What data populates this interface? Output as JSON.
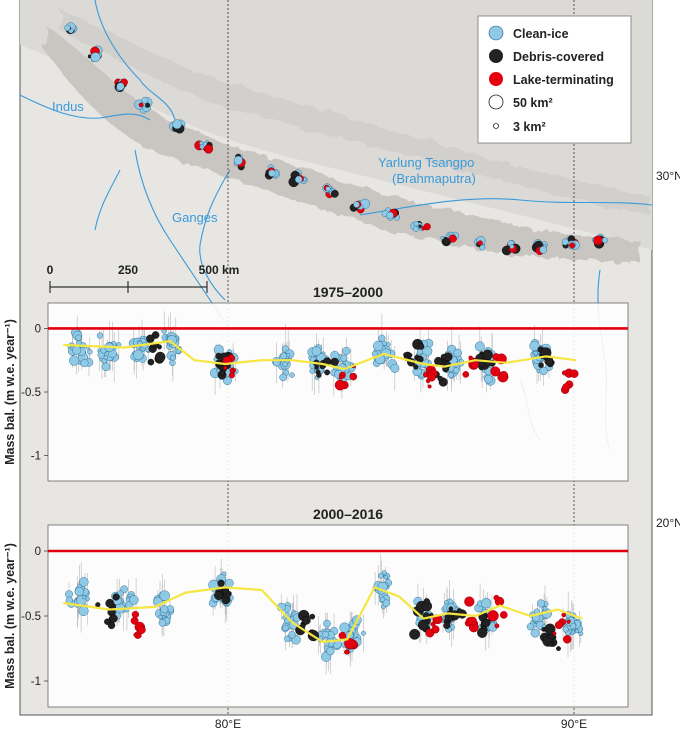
{
  "map": {
    "rivers": [
      "Indus",
      "Ganges",
      "Yarlung Tsangpo",
      "(Brahmaputra)"
    ],
    "scalebar": {
      "ticks": [
        "0",
        "250",
        "500 km"
      ]
    },
    "lat_labels": [
      "30°N",
      "20°N"
    ],
    "lon_labels": [
      "80°E",
      "90°E"
    ],
    "colors": {
      "clean_ice": "#8ecae6",
      "debris": "#222222",
      "lake": "#e3000f",
      "river": "#3a9ad9",
      "land": "#e4e2df",
      "mountain": "#c9c6c2",
      "zero_line": "#e3000f",
      "trend": "#f5e642"
    }
  },
  "legend": {
    "items": [
      "Clean-ice",
      "Debris-covered",
      "Lake-terminating"
    ],
    "size_items": [
      "50 km²",
      "3 km²"
    ]
  },
  "chart_data": [
    {
      "type": "scatter",
      "title": "1975–2000",
      "ylabel": "Mass bal. (m w.e. year⁻¹)",
      "xlim": [
        73.5,
        92.5
      ],
      "ylim": [
        -1.2,
        0.2
      ],
      "yticks": [
        "0",
        "-0.5",
        "-1"
      ],
      "xticks": [
        "80°E",
        "90°E"
      ],
      "reference_line_y": 0,
      "series": [
        {
          "category": "Clean-ice",
          "color": "#8ecae6",
          "clusters": [
            [
              74.5,
              -0.15
            ],
            [
              75.5,
              -0.2
            ],
            [
              76.5,
              -0.18
            ],
            [
              77.5,
              -0.12
            ],
            [
              79.3,
              -0.28
            ],
            [
              81.3,
              -0.25
            ],
            [
              82.3,
              -0.28
            ],
            [
              83.2,
              -0.3
            ],
            [
              84.5,
              -0.2
            ],
            [
              85.8,
              -0.26
            ],
            [
              86.8,
              -0.28
            ],
            [
              87.9,
              -0.27
            ],
            [
              89.6,
              -0.24
            ]
          ]
        },
        {
          "category": "Debris-covered",
          "color": "#222222",
          "clusters": [
            [
              77.0,
              -0.15
            ],
            [
              79.3,
              -0.3
            ],
            [
              82.5,
              -0.3
            ],
            [
              85.5,
              -0.25
            ],
            [
              86.5,
              -0.3
            ],
            [
              87.8,
              -0.3
            ],
            [
              89.8,
              -0.25
            ]
          ]
        },
        {
          "category": "Lake-terminating",
          "color": "#e3000f",
          "clusters": [
            [
              79.5,
              -0.25
            ],
            [
              83.2,
              -0.35
            ],
            [
              86.0,
              -0.4
            ],
            [
              87.3,
              -0.32
            ],
            [
              88.2,
              -0.3
            ],
            [
              90.5,
              -0.4
            ]
          ]
        }
      ],
      "trend": [
        [
          74.0,
          -0.13
        ],
        [
          76.0,
          -0.15
        ],
        [
          77.5,
          -0.1
        ],
        [
          78.3,
          -0.25
        ],
        [
          79.3,
          -0.28
        ],
        [
          80.5,
          -0.25
        ],
        [
          81.5,
          -0.25
        ],
        [
          82.5,
          -0.28
        ],
        [
          83.2,
          -0.32
        ],
        [
          84.5,
          -0.2
        ],
        [
          85.8,
          -0.28
        ],
        [
          86.5,
          -0.3
        ],
        [
          87.5,
          -0.25
        ],
        [
          88.5,
          -0.27
        ],
        [
          89.8,
          -0.22
        ],
        [
          90.8,
          -0.25
        ]
      ]
    },
    {
      "type": "scatter",
      "title": "2000–2016",
      "ylabel": "Mass bal. (m w.e. year⁻¹)",
      "xlim": [
        73.5,
        92.5
      ],
      "ylim": [
        -1.2,
        0.2
      ],
      "yticks": [
        "0",
        "-0.5",
        "-1"
      ],
      "xticks": [
        "80°E",
        "90°E"
      ],
      "reference_line_y": 0,
      "series": [
        {
          "category": "Clean-ice",
          "color": "#8ecae6",
          "clusters": [
            [
              74.5,
              -0.35
            ],
            [
              76.0,
              -0.4
            ],
            [
              77.3,
              -0.45
            ],
            [
              79.2,
              -0.3
            ],
            [
              81.4,
              -0.55
            ],
            [
              82.6,
              -0.7
            ],
            [
              83.5,
              -0.65
            ],
            [
              84.5,
              -0.3
            ],
            [
              85.8,
              -0.5
            ],
            [
              86.7,
              -0.5
            ],
            [
              87.9,
              -0.5
            ],
            [
              89.6,
              -0.5
            ],
            [
              90.7,
              -0.6
            ]
          ]
        },
        {
          "category": "Debris-covered",
          "color": "#222222",
          "clusters": [
            [
              75.5,
              -0.45
            ],
            [
              79.3,
              -0.3
            ],
            [
              82.0,
              -0.55
            ],
            [
              85.8,
              -0.5
            ],
            [
              86.8,
              -0.5
            ],
            [
              87.8,
              -0.55
            ],
            [
              89.9,
              -0.65
            ]
          ]
        },
        {
          "category": "Lake-terminating",
          "color": "#e3000f",
          "clusters": [
            [
              76.5,
              -0.6
            ],
            [
              83.3,
              -0.75
            ],
            [
              86.2,
              -0.55
            ],
            [
              87.4,
              -0.5
            ],
            [
              88.2,
              -0.45
            ],
            [
              90.3,
              -0.6
            ]
          ]
        }
      ],
      "trend": [
        [
          74.0,
          -0.4
        ],
        [
          75.5,
          -0.45
        ],
        [
          77.0,
          -0.43
        ],
        [
          78.0,
          -0.32
        ],
        [
          79.3,
          -0.28
        ],
        [
          80.5,
          -0.3
        ],
        [
          81.5,
          -0.55
        ],
        [
          82.5,
          -0.7
        ],
        [
          83.3,
          -0.68
        ],
        [
          84.2,
          -0.28
        ],
        [
          85.0,
          -0.35
        ],
        [
          85.8,
          -0.52
        ],
        [
          86.6,
          -0.48
        ],
        [
          87.5,
          -0.5
        ],
        [
          88.3,
          -0.42
        ],
        [
          89.3,
          -0.5
        ],
        [
          90.2,
          -0.45
        ],
        [
          91.0,
          -0.52
        ]
      ]
    }
  ]
}
